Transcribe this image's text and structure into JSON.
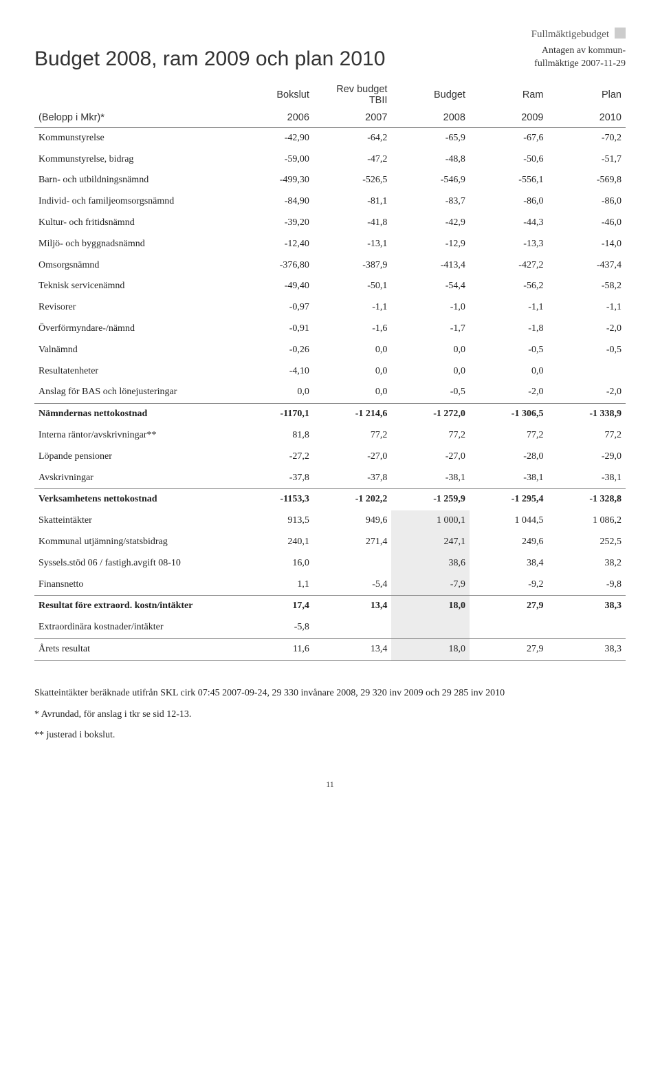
{
  "header": {
    "corner_label": "Fullmäktigebudget",
    "title": "Budget 2008, ram 2009 och plan 2010",
    "adopted_line1": "Antagen av kommun-",
    "adopted_line2": "fullmäktige 2007-11-29"
  },
  "columns": {
    "r1": [
      "",
      "Bokslut",
      "Rev budget TBII",
      "Budget",
      "Ram",
      "Plan"
    ],
    "r2": [
      "(Belopp i Mkr)*",
      "2006",
      "2007",
      "2008",
      "2009",
      "2010"
    ]
  },
  "rows": [
    {
      "label": "Kommunstyrelse",
      "v": [
        "-42,90",
        "-64,2",
        "-65,9",
        "-67,6",
        "-70,2"
      ]
    },
    {
      "label": "Kommunstyrelse, bidrag",
      "v": [
        "-59,00",
        "-47,2",
        "-48,8",
        "-50,6",
        "-51,7"
      ]
    },
    {
      "label": "Barn- och utbildningsnämnd",
      "v": [
        "-499,30",
        "-526,5",
        "-546,9",
        "-556,1",
        "-569,8"
      ]
    },
    {
      "label": "Individ- och familjeomsorgsnämnd",
      "v": [
        "-84,90",
        "-81,1",
        "-83,7",
        "-86,0",
        "-86,0"
      ]
    },
    {
      "label": "Kultur- och fritidsnämnd",
      "v": [
        "-39,20",
        "-41,8",
        "-42,9",
        "-44,3",
        "-46,0"
      ]
    },
    {
      "label": "Miljö- och byggnadsnämnd",
      "v": [
        "-12,40",
        "-13,1",
        "-12,9",
        "-13,3",
        "-14,0"
      ]
    },
    {
      "label": "Omsorgsnämnd",
      "v": [
        "-376,80",
        "-387,9",
        "-413,4",
        "-427,2",
        "-437,4"
      ]
    },
    {
      "label": "Teknisk servicenämnd",
      "v": [
        "-49,40",
        "-50,1",
        "-54,4",
        "-56,2",
        "-58,2"
      ]
    },
    {
      "label": "Revisorer",
      "v": [
        "-0,97",
        "-1,1",
        "-1,0",
        "-1,1",
        "-1,1"
      ]
    },
    {
      "label": "Överförmyndare-/nämnd",
      "v": [
        "-0,91",
        "-1,6",
        "-1,7",
        "-1,8",
        "-2,0"
      ]
    },
    {
      "label": "Valnämnd",
      "v": [
        "-0,26",
        "0,0",
        "0,0",
        "-0,5",
        "-0,5"
      ]
    },
    {
      "label": "Resultatenheter",
      "v": [
        "-4,10",
        "0,0",
        "0,0",
        "0,0",
        ""
      ]
    },
    {
      "label": "Anslag för BAS och lönejusteringar",
      "v": [
        "0,0",
        "0,0",
        "-0,5",
        "-2,0",
        "-2,0"
      ]
    },
    {
      "label": "Nämndernas nettokostnad",
      "v": [
        "-1170,1",
        "-1 214,6",
        "-1 272,0",
        "-1 306,5",
        "-1 338,9"
      ],
      "bold": true,
      "hr_top": true
    },
    {
      "label": "Interna räntor/avskrivningar**",
      "v": [
        "81,8",
        "77,2",
        "77,2",
        "77,2",
        "77,2"
      ]
    },
    {
      "label": "Löpande pensioner",
      "v": [
        "-27,2",
        "-27,0",
        "-27,0",
        "-28,0",
        "-29,0"
      ]
    },
    {
      "label": "Avskrivningar",
      "v": [
        "-37,8",
        "-37,8",
        "-38,1",
        "-38,1",
        "-38,1"
      ]
    },
    {
      "label": "Verksamhetens nettokostnad",
      "v": [
        "-1153,3",
        "-1 202,2",
        "-1 259,9",
        "-1 295,4",
        "-1 328,8"
      ],
      "bold": true,
      "hr_top": true
    },
    {
      "label": "Skatteintäkter",
      "v": [
        "913,5",
        "949,6",
        "1 000,1",
        "1 044,5",
        "1 086,2"
      ],
      "shade": [
        2
      ]
    },
    {
      "label": "Kommunal utjämning/statsbidrag",
      "v": [
        "240,1",
        "271,4",
        "247,1",
        "249,6",
        "252,5"
      ],
      "shade": [
        2
      ]
    },
    {
      "label": "Syssels.stöd 06 / fastigh.avgift 08-10",
      "v": [
        "16,0",
        "",
        "38,6",
        "38,4",
        "38,2"
      ],
      "shade": [
        2
      ]
    },
    {
      "label": "Finansnetto",
      "v": [
        "1,1",
        "-5,4",
        "-7,9",
        "-9,2",
        "-9,8"
      ],
      "shade": [
        2
      ]
    },
    {
      "label": "Resultat före extraord. kostn/intäkter",
      "v": [
        "17,4",
        "13,4",
        "18,0",
        "27,9",
        "38,3"
      ],
      "bold": true,
      "hr_top": true,
      "shade": [
        2
      ]
    },
    {
      "label": "Extraordinära kostnader/intäkter",
      "v": [
        "-5,8",
        "",
        "",
        "",
        ""
      ],
      "shade": [
        2
      ]
    },
    {
      "label": "Årets resultat",
      "v": [
        "11,6",
        "13,4",
        "18,0",
        "27,9",
        "38,3"
      ],
      "hr_top": true,
      "hr_bot": true,
      "shade": [
        2
      ]
    }
  ],
  "footnotes": [
    "Skatteintäkter beräknade utifrån SKL cirk 07:45 2007-09-24, 29 330 invånare 2008, 29 320 inv 2009 och 29 285 inv 2010",
    "* Avrundad, för anslag i tkr se sid 12-13.",
    "** justerad i bokslut."
  ],
  "page_number": "11"
}
